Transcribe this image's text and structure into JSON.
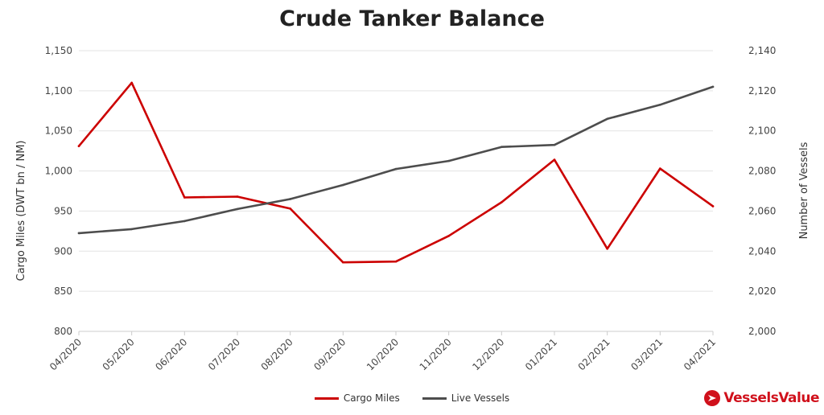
{
  "title": "Crude Tanker Balance",
  "brand": {
    "name": "VesselsValue",
    "icon": "vesselsvalue-logo-icon",
    "color": "#d0101b"
  },
  "chart_data": {
    "type": "line",
    "title": "Crude Tanker Balance",
    "categories": [
      "04/2020",
      "05/2020",
      "06/2020",
      "07/2020",
      "08/2020",
      "09/2020",
      "10/2020",
      "11/2020",
      "12/2020",
      "01/2021",
      "02/2021",
      "03/2021",
      "04/2021"
    ],
    "y_left": {
      "label": "Cargo Miles (DWT bn / NM)",
      "min": 800,
      "max": 1150,
      "ticks": [
        800,
        850,
        900,
        950,
        1000,
        1050,
        1100,
        1150
      ],
      "tick_labels": [
        "800",
        "850",
        "900",
        "950",
        "1,000",
        "1,050",
        "1,100",
        "1,150"
      ]
    },
    "y_right": {
      "label": "Number of Vessels",
      "min": 2000,
      "max": 2140,
      "ticks": [
        2000,
        2020,
        2040,
        2060,
        2080,
        2100,
        2120,
        2140
      ],
      "tick_labels": [
        "2,000",
        "2,020",
        "2,040",
        "2,060",
        "2,080",
        "2,100",
        "2,120",
        "2,140"
      ]
    },
    "grid": true,
    "legend_position": "bottom",
    "series": [
      {
        "name": "Cargo Miles",
        "axis": "left",
        "color": "#cc0000",
        "values": [
          1031,
          1110,
          967,
          968,
          953,
          886,
          887,
          919,
          961,
          1014,
          903,
          1003,
          956
        ]
      },
      {
        "name": "Live Vessels",
        "axis": "right",
        "color": "#4d4d4d",
        "values": [
          2049,
          2051,
          2055,
          2061,
          2066,
          2073,
          2081,
          2085,
          2092,
          2093,
          2106,
          2113,
          2122
        ]
      }
    ]
  }
}
